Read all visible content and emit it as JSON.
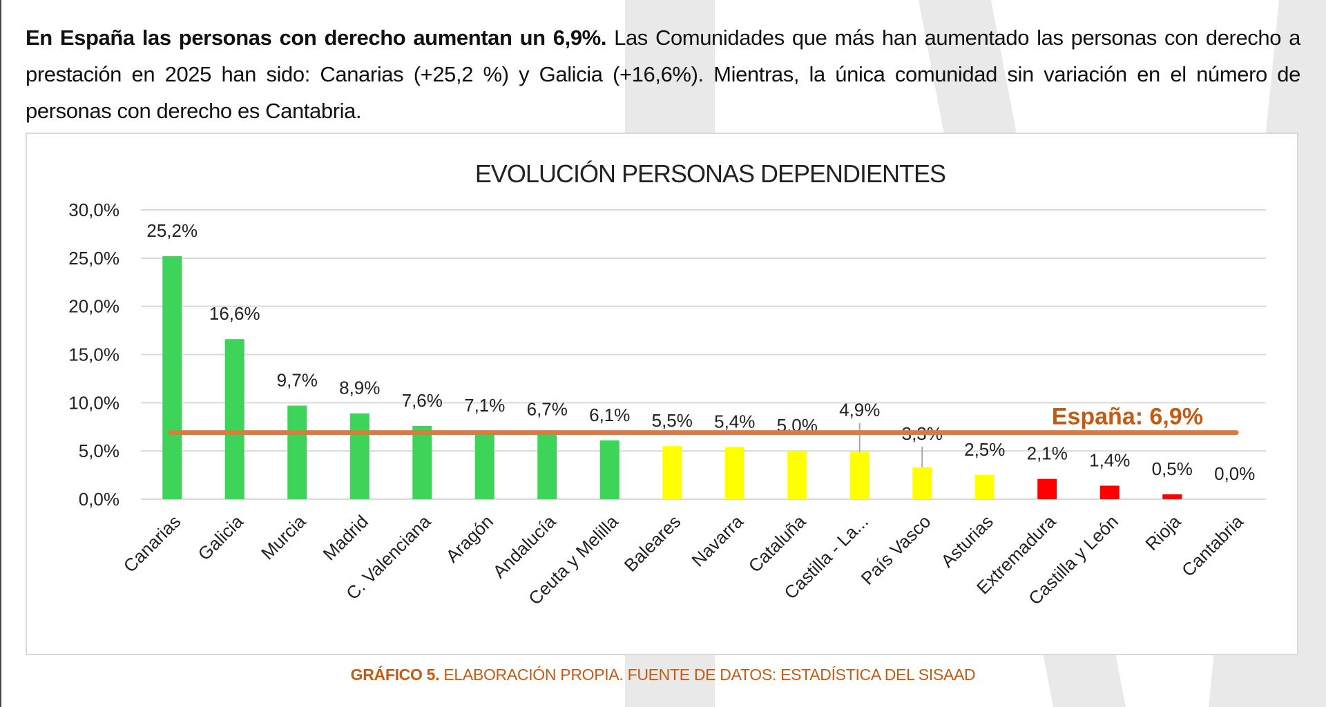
{
  "intro": {
    "bold": "En España las personas con derecho aumentan un 6,9%.",
    "rest": " Las Comunidades que más han aumentado las personas con derecho a prestación en 2025 han sido: Canarias (+25,2 %) y Galicia (+16,6%). Mientras, la única comunidad sin variación en el número de personas con derecho es Cantabria."
  },
  "chart_data": {
    "type": "bar",
    "title": "EVOLUCIÓN PERSONAS DEPENDIENTES",
    "xlabel": "",
    "ylabel": "",
    "ylim": [
      0,
      30
    ],
    "grid": true,
    "y_ticks": [
      "0,0%",
      "5,0%",
      "10,0%",
      "15,0%",
      "20,0%",
      "25,0%",
      "30,0%"
    ],
    "categories": [
      "Canarias",
      "Galicia",
      "Murcia",
      "Madrid",
      "C. Valenciana",
      "Aragón",
      "Andalucía",
      "Ceuta y Melilla",
      "Baleares",
      "Navarra",
      "Cataluña",
      "Castilla - La...",
      "País Vasco",
      "Asturias",
      "Extremadura",
      "Castilla y León",
      "Rioja",
      "Cantabria"
    ],
    "values": [
      25.2,
      16.6,
      9.7,
      8.9,
      7.6,
      7.1,
      6.7,
      6.1,
      5.5,
      5.4,
      5.0,
      4.9,
      3.3,
      2.5,
      2.1,
      1.4,
      0.5,
      0.0
    ],
    "labels": [
      "25,2%",
      "16,6%",
      "9,7%",
      "8,9%",
      "7,6%",
      "7,1%",
      "6,7%",
      "6,1%",
      "5,5%",
      "5,4%",
      "5,0%",
      "4,9%",
      "3,3%",
      "2,5%",
      "2,1%",
      "1,4%",
      "0,5%",
      "0,0%"
    ],
    "bar_colors": [
      "#3ed45a",
      "#3ed45a",
      "#3ed45a",
      "#3ed45a",
      "#3ed45a",
      "#3ed45a",
      "#3ed45a",
      "#3ed45a",
      "#ffff00",
      "#ffff00",
      "#ffff00",
      "#ffff00",
      "#ffff00",
      "#ffff00",
      "#ff0000",
      "#ff0000",
      "#ff0000",
      "#ff0000"
    ],
    "reference_line": {
      "value": 6.9,
      "label": "España: 6,9%",
      "color": "#e07a3a",
      "label_color": "#c55a11"
    }
  },
  "caption": {
    "bold": "GRÁFICO 5.",
    "rest": " ELABORACIÓN PROPIA. FUENTE DE DATOS: ESTADÍSTICA DEL SISAAD"
  }
}
